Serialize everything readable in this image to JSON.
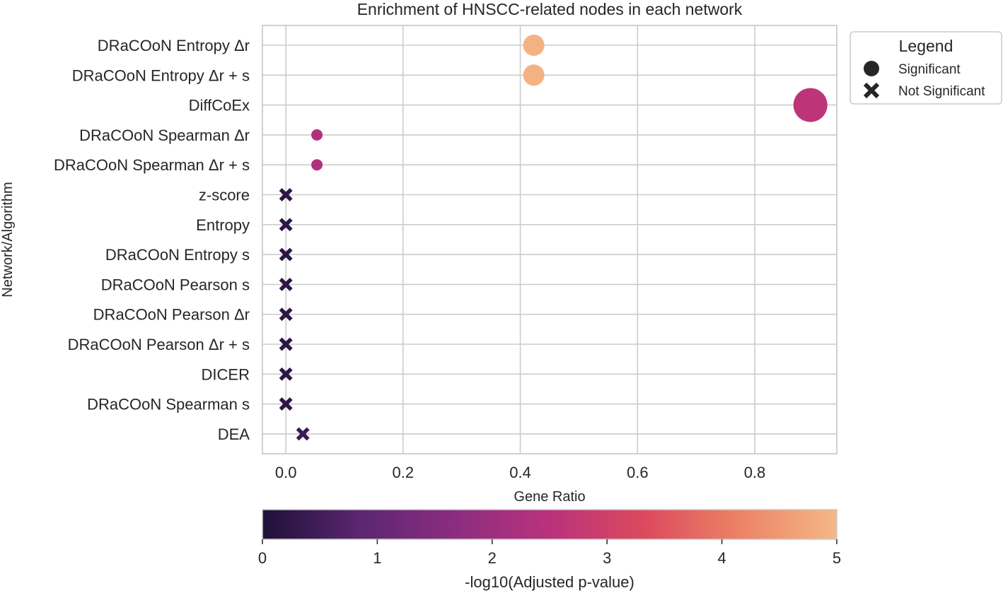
{
  "chart_data": {
    "type": "scatter",
    "title": "Enrichment of HNSCC-related nodes in each network",
    "xlabel": "Gene Ratio",
    "ylabel": "Network/Algorithm",
    "xlim": [
      -0.04,
      0.94
    ],
    "xticks": [
      0.0,
      0.2,
      0.4,
      0.6,
      0.8
    ],
    "xtick_labels": [
      "0.0",
      "0.2",
      "0.4",
      "0.6",
      "0.8"
    ],
    "grid": true,
    "points": [
      {
        "label": "DRaCOoN Entropy Δr",
        "x": 0.423,
        "neglog10p": 4.9,
        "significant": true
      },
      {
        "label": "DRaCOoN Entropy Δr + s",
        "x": 0.423,
        "neglog10p": 4.9,
        "significant": true
      },
      {
        "label": "DiffCoEx",
        "x": 0.895,
        "neglog10p": 2.6,
        "significant": true
      },
      {
        "label": "DRaCOoN Spearman Δr",
        "x": 0.053,
        "neglog10p": 2.4,
        "significant": true
      },
      {
        "label": "DRaCOoN Spearman Δr + s",
        "x": 0.053,
        "neglog10p": 2.4,
        "significant": true
      },
      {
        "label": "z-score",
        "x": 0.0,
        "neglog10p": 0.2,
        "significant": false
      },
      {
        "label": "Entropy",
        "x": 0.0,
        "neglog10p": 0.2,
        "significant": false
      },
      {
        "label": "DRaCOoN Entropy s",
        "x": 0.0,
        "neglog10p": 0.2,
        "significant": false
      },
      {
        "label": "DRaCOoN Pearson s",
        "x": 0.0,
        "neglog10p": 0.2,
        "significant": false
      },
      {
        "label": "DRaCOoN Pearson Δr",
        "x": 0.0,
        "neglog10p": 0.2,
        "significant": false
      },
      {
        "label": "DRaCOoN Pearson Δr + s",
        "x": 0.0,
        "neglog10p": 0.2,
        "significant": false
      },
      {
        "label": "DICER",
        "x": 0.0,
        "neglog10p": 0.2,
        "significant": false
      },
      {
        "label": "DRaCOoN Spearman s",
        "x": 0.0,
        "neglog10p": 0.2,
        "significant": false
      },
      {
        "label": "DEA",
        "x": 0.029,
        "neglog10p": 0.4,
        "significant": false
      }
    ],
    "legend": {
      "title": "Legend",
      "position": "outside-right-top",
      "entries": [
        {
          "marker": "circle",
          "label": "Significant"
        },
        {
          "marker": "x",
          "label": "Not Significant"
        }
      ]
    },
    "colorbar": {
      "label": "-log10(Adjusted p-value)",
      "range": [
        0,
        5
      ],
      "ticks": [
        "0",
        "1",
        "2",
        "3",
        "4",
        "5"
      ],
      "palette": [
        "#1e1138",
        "#5a2670",
        "#8b2d80",
        "#b9327b",
        "#dc4a5e",
        "#ec8466",
        "#f5b887"
      ],
      "position": "bottom"
    }
  }
}
